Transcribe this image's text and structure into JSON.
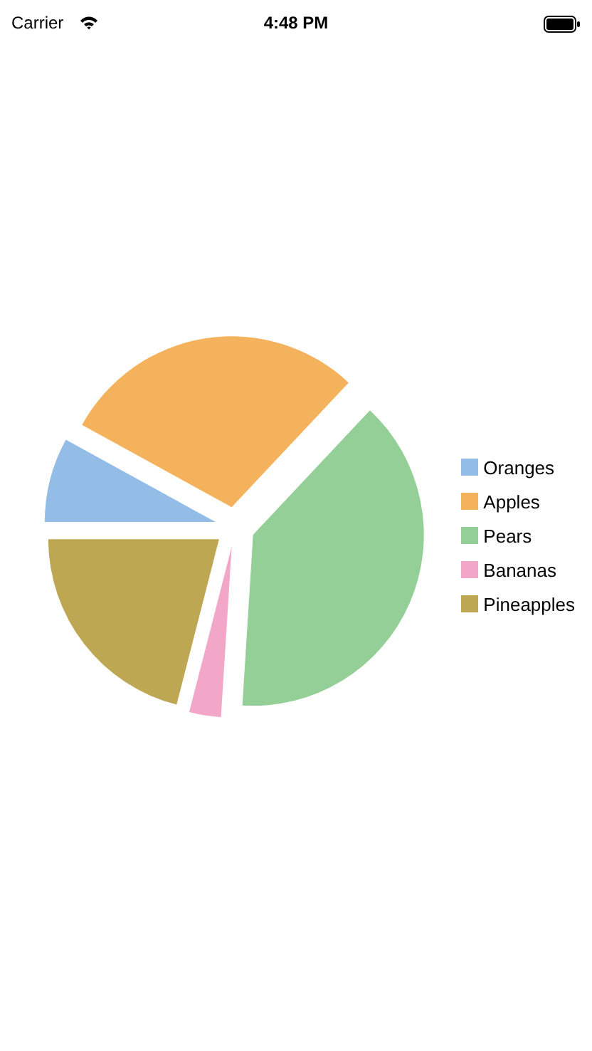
{
  "chart_data": {
    "type": "pie",
    "categories": [
      "Oranges",
      "Apples",
      "Pears",
      "Bananas",
      "Pineapples"
    ],
    "values": [
      8,
      29,
      39,
      3,
      21
    ],
    "colors": [
      "#93bde6",
      "#f5b25c",
      "#93cf97",
      "#f2a7c9",
      "#bea753"
    ],
    "legend": "right",
    "annotations": [
      "Carrier",
      "4:48 PM"
    ]
  }
}
